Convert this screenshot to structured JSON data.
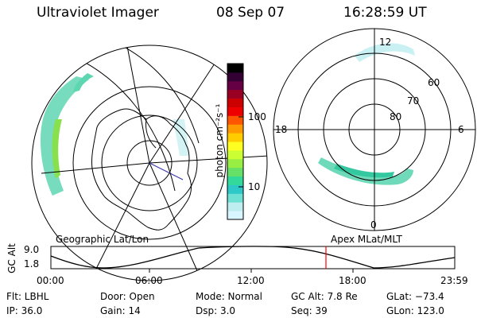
{
  "header": {
    "instrument": "Ultraviolet Imager",
    "date": "08 Sep 07",
    "time": "16:28:59 UT"
  },
  "geo_map": {
    "label": "Geographic Lat/Lon"
  },
  "mlt_dial": {
    "label": "Apex MLat/MLT",
    "hour_top": "12",
    "hour_left": "18",
    "hour_right": "6",
    "hour_bottom": "0",
    "lat_labels": [
      "60",
      "70",
      "80"
    ]
  },
  "colorbar": {
    "unit_label": "photon cm⁻²s⁻¹",
    "tick_high": "100",
    "tick_low": "10",
    "colors": [
      "#d8f6ff",
      "#bfeef0",
      "#6fe0d4",
      "#2ec8c8",
      "#33d99a",
      "#66e066",
      "#99ee44",
      "#ccff33",
      "#ffff22",
      "#ffcc00",
      "#ff9900",
      "#ff5500",
      "#ee0000",
      "#cc0000",
      "#990022",
      "#660044",
      "#330033",
      "#000000"
    ]
  },
  "altitude_plot": {
    "ylabel": "GC Alt",
    "y_top": "9.0",
    "y_bottom": "1.8",
    "x_ticks": [
      "00:00",
      "06:00",
      "12:00",
      "18:00",
      "23:59"
    ],
    "marker_color": "#ff0000"
  },
  "info": {
    "filter": "Flt: LBHL",
    "ip": "IP: 36.0",
    "door": "Door: Open",
    "gain": "Gain: 14",
    "mode": "Mode: Normal",
    "dsp": "Dsp:     3.0",
    "gc_alt": "GC Alt: 7.8 Re",
    "seq": "Seq: 39",
    "glat": "GLat: −73.4",
    "glon": "GLon: 123.0"
  }
}
